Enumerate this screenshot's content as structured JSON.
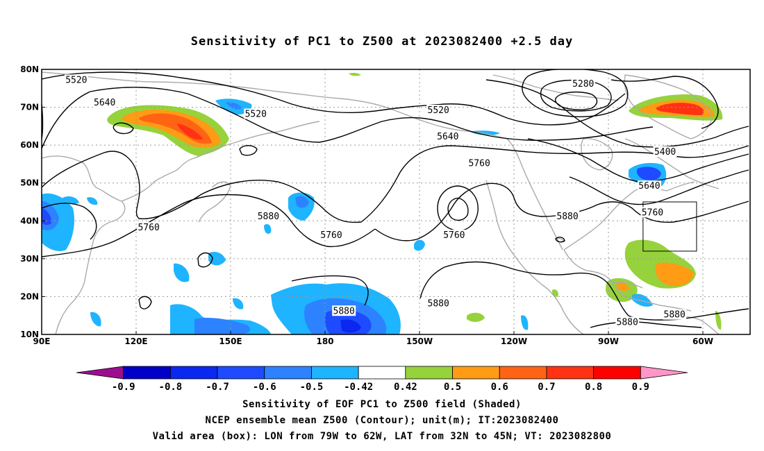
{
  "title": "Sensitivity of PC1 to Z500 at 2023082400 +2.5 day",
  "map": {
    "lat_ticks": [
      {
        "value": 80,
        "label": "80N"
      },
      {
        "value": 70,
        "label": "70N"
      },
      {
        "value": 60,
        "label": "60N"
      },
      {
        "value": 50,
        "label": "50N"
      },
      {
        "value": 40,
        "label": "40N"
      },
      {
        "value": 30,
        "label": "30N"
      },
      {
        "value": 20,
        "label": "20N"
      },
      {
        "value": 10,
        "label": "10N"
      }
    ],
    "lon_ticks": [
      {
        "value": 90,
        "label": "90E"
      },
      {
        "value": 120,
        "label": "120E"
      },
      {
        "value": 150,
        "label": "150E"
      },
      {
        "value": 180,
        "label": "180"
      },
      {
        "value": 210,
        "label": "150W"
      },
      {
        "value": 240,
        "label": "120W"
      },
      {
        "value": 270,
        "label": "90W"
      },
      {
        "value": 300,
        "label": "60W"
      }
    ],
    "lon_range": [
      90,
      315
    ],
    "lat_range": [
      10,
      80
    ],
    "box": {
      "lon": [
        281,
        298
      ],
      "lat": [
        32,
        45
      ]
    },
    "contour_labels": [
      {
        "text": "5520",
        "lon": 101,
        "lat": 77
      },
      {
        "text": "5640",
        "lon": 110,
        "lat": 71
      },
      {
        "text": "5520",
        "lon": 158,
        "lat": 68
      },
      {
        "text": "5520",
        "lon": 216,
        "lat": 69
      },
      {
        "text": "5640",
        "lon": 219,
        "lat": 62
      },
      {
        "text": "5760",
        "lon": 229,
        "lat": 55
      },
      {
        "text": "5280",
        "lon": 262,
        "lat": 76
      },
      {
        "text": "5400",
        "lon": 288,
        "lat": 58
      },
      {
        "text": "5640",
        "lon": 283,
        "lat": 49
      },
      {
        "text": "5760",
        "lon": 284,
        "lat": 42
      },
      {
        "text": "5880",
        "lon": 162,
        "lat": 41
      },
      {
        "text": "5760",
        "lon": 124,
        "lat": 38
      },
      {
        "text": "5760",
        "lon": 182,
        "lat": 36
      },
      {
        "text": "5760",
        "lon": 221,
        "lat": 36
      },
      {
        "text": "5880",
        "lon": 257,
        "lat": 41
      },
      {
        "text": "5880",
        "lon": 186,
        "lat": 16
      },
      {
        "text": "5880",
        "lon": 216,
        "lat": 18
      },
      {
        "text": "5880",
        "lon": 276,
        "lat": 13
      },
      {
        "text": "5880",
        "lon": 291,
        "lat": 15
      }
    ]
  },
  "colorbar": {
    "colors": [
      "#9b0f8e",
      "#0000c8",
      "#0a28f0",
      "#1e4bff",
      "#2d82ff",
      "#1eb4ff",
      "#ffffff",
      "#96d23c",
      "#ff9b14",
      "#ff6414",
      "#ff3214",
      "#ff0000",
      "#ff96c8"
    ],
    "labels": [
      "-0.9",
      "-0.8",
      "-0.7",
      "-0.6",
      "-0.5",
      "-0.42",
      "0.42",
      "0.5",
      "0.6",
      "0.7",
      "0.8",
      "0.9"
    ]
  },
  "captions": {
    "line1": "Sensitivity of EOF PC1 to Z500 field (Shaded)",
    "line2": "NCEP ensemble mean Z500 (Contour); unit(m); IT:2023082400",
    "line3": "Valid area (box): LON from 79W to 62W, LAT from 32N to 45N; VT: 2023082800"
  }
}
